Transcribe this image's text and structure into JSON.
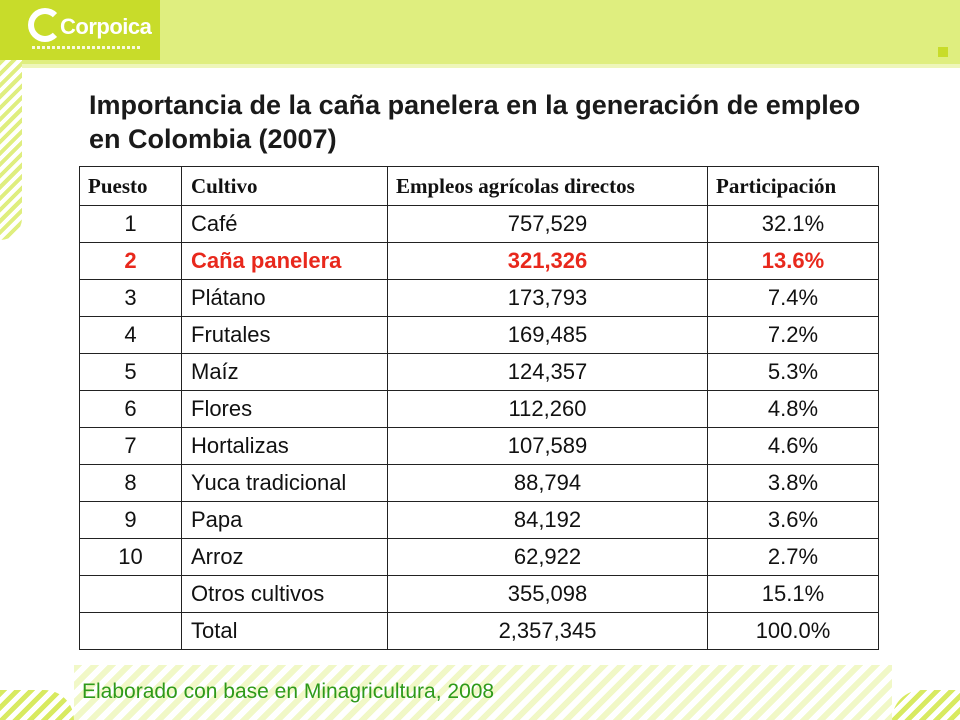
{
  "slide": {
    "logo_text": "Corpoica",
    "title": "Importancia de la caña panelera en la generación de empleo en Colombia (2007)",
    "source": "Elaborado con base en Minagricultura, 2008"
  },
  "table": {
    "headers": [
      "Puesto",
      "Cultivo",
      "Empleos agrícolas directos",
      "Participación"
    ],
    "rows": [
      {
        "rank": "1",
        "crop": "Café",
        "jobs": "757,529",
        "share": "32.1%"
      },
      {
        "rank": "2",
        "crop": "Caña panelera",
        "jobs": "321,326",
        "share": "13.6%",
        "highlight": true
      },
      {
        "rank": "3",
        "crop": "Plátano",
        "jobs": "173,793",
        "share": "7.4%"
      },
      {
        "rank": "4",
        "crop": "Frutales",
        "jobs": "169,485",
        "share": "7.2%"
      },
      {
        "rank": "5",
        "crop": "Maíz",
        "jobs": "124,357",
        "share": "5.3%"
      },
      {
        "rank": "6",
        "crop": "Flores",
        "jobs": "112,260",
        "share": "4.8%"
      },
      {
        "rank": "7",
        "crop": "Hortalizas",
        "jobs": "107,589",
        "share": "4.6%"
      },
      {
        "rank": "8",
        "crop": "Yuca tradicional",
        "jobs": "88,794",
        "share": "3.8%"
      },
      {
        "rank": "9",
        "crop": "Papa",
        "jobs": "84,192",
        "share": "3.6%"
      },
      {
        "rank": "10",
        "crop": "Arroz",
        "jobs": "62,922",
        "share": "2.7%"
      },
      {
        "rank": "",
        "crop": "Otros cultivos",
        "jobs": "355,098",
        "share": "15.1%"
      },
      {
        "rank": "",
        "crop": "Total",
        "jobs": "2,357,345",
        "share": "100.0%"
      }
    ]
  },
  "colors": {
    "highlight": "#e8281c",
    "brand_green": "#c8dc2a",
    "source_text": "#2e9a1a"
  }
}
